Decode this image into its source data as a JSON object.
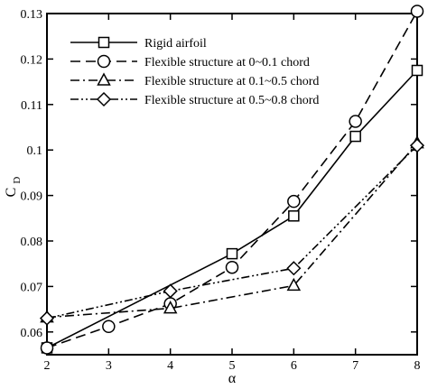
{
  "chart_data": {
    "type": "line",
    "xlabel": "α",
    "ylabel_main": "C",
    "ylabel_sub": "D",
    "xlim": [
      2,
      8
    ],
    "ylim": [
      0.055,
      0.13
    ],
    "xticks": [
      "2",
      "3",
      "4",
      "5",
      "6",
      "7",
      "8"
    ],
    "yticks": [
      "0.06",
      "0.07",
      "0.08",
      "0.09",
      "0.1",
      "0.11",
      "0.12",
      "0.13"
    ],
    "grid": false,
    "legend_position": "top-left",
    "series": [
      {
        "name": "Rigid airfoil",
        "line_style": "solid",
        "marker": "square",
        "x": [
          2,
          5,
          6,
          7,
          8
        ],
        "y": [
          0.0565,
          0.0772,
          0.0855,
          0.103,
          0.1175
        ]
      },
      {
        "name": "Flexible structure at 0~0.1 chord",
        "line_style": "dashed",
        "marker": "circle",
        "x": [
          2,
          3,
          4,
          5,
          6,
          7,
          8
        ],
        "y": [
          0.0565,
          0.0612,
          0.0662,
          0.0742,
          0.0887,
          0.1063,
          0.1305
        ]
      },
      {
        "name": "Flexible structure at 0.1~0.5 chord",
        "line_style": "dashdot",
        "marker": "triangle",
        "x": [
          2,
          4,
          6,
          8
        ],
        "y": [
          0.0632,
          0.0652,
          0.0702,
          0.1015
        ]
      },
      {
        "name": "Flexible structure at 0.5~0.8 chord",
        "line_style": "dashdotdot",
        "marker": "diamond",
        "x": [
          2,
          4,
          6,
          8
        ],
        "y": [
          0.063,
          0.069,
          0.074,
          0.101
        ]
      }
    ]
  }
}
